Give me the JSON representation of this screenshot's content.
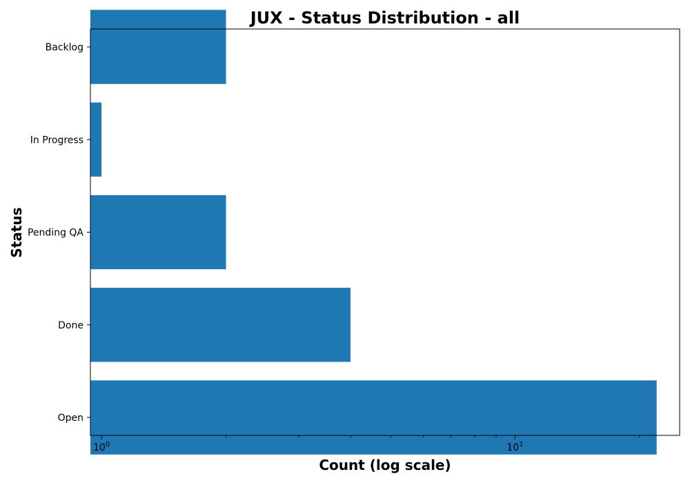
{
  "chart_data": {
    "type": "bar",
    "orientation": "horizontal",
    "title": "JUX - Status Distribution - all",
    "xlabel": "Count (log scale)",
    "ylabel": "Status",
    "x_scale": "log",
    "xlim": [
      0.94,
      25
    ],
    "x_tick_labels": [
      {
        "base": "10",
        "exp": "0",
        "value": 1
      },
      {
        "base": "10",
        "exp": "1",
        "value": 10
      }
    ],
    "categories": [
      "Backlog",
      "In Progress",
      "Pending QA",
      "Done",
      "Open"
    ],
    "values": [
      2,
      1,
      2,
      4,
      22
    ],
    "bar_color": "#1f77b4",
    "grid": false,
    "legend": "none"
  }
}
